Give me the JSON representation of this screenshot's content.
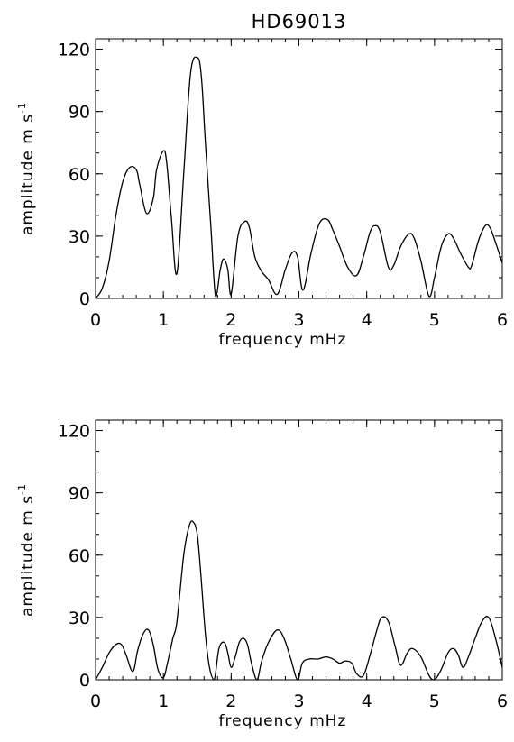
{
  "chart_data": [
    {
      "type": "line",
      "title": "HD69013",
      "xlabel": "frequency   mHz",
      "ylabel": "amplitude  m s",
      "ylabel_sup": "-1",
      "xlim": [
        0,
        6
      ],
      "ylim": [
        0,
        125
      ],
      "xticks": [
        "0",
        "1",
        "2",
        "3",
        "4",
        "5",
        "6"
      ],
      "yticks": [
        "0",
        "30",
        "60",
        "90",
        "120"
      ],
      "grid": false,
      "series": [
        {
          "x": [
            0.0,
            0.1,
            0.2,
            0.3,
            0.4,
            0.5,
            0.6,
            0.65,
            0.75,
            0.85,
            0.9,
            1.0,
            1.05,
            1.12,
            1.2,
            1.3,
            1.4,
            1.5,
            1.56,
            1.62,
            1.7,
            1.77,
            1.84,
            1.89,
            1.95,
            2.0,
            2.1,
            2.2,
            2.27,
            2.35,
            2.45,
            2.55,
            2.68,
            2.8,
            2.9,
            2.98,
            3.06,
            3.18,
            3.3,
            3.42,
            3.5,
            3.6,
            3.72,
            3.85,
            3.95,
            4.05,
            4.12,
            4.2,
            4.32,
            4.4,
            4.5,
            4.62,
            4.7,
            4.8,
            4.92,
            5.0,
            5.1,
            5.2,
            5.28,
            5.38,
            5.5,
            5.55,
            5.65,
            5.75,
            5.82,
            5.9,
            6.0
          ],
          "y": [
            0,
            5,
            18,
            40,
            56,
            63,
            62,
            55,
            41,
            48,
            62,
            71,
            65,
            38,
            12,
            60,
            108,
            116,
            107,
            75,
            35,
            1,
            14,
            19,
            14,
            2,
            30,
            37,
            34,
            20,
            13,
            9,
            2,
            14,
            22,
            20,
            4,
            22,
            36,
            38,
            33,
            25,
            15,
            11,
            20,
            32,
            35,
            32,
            15,
            16,
            25,
            31,
            29,
            18,
            1,
            10,
            25,
            31,
            29,
            22,
            15,
            16,
            28,
            35,
            34,
            27,
            17
          ]
        }
      ]
    },
    {
      "type": "line",
      "title": "",
      "xlabel": "frequency   mHz",
      "ylabel": "amplitude  m s",
      "ylabel_sup": "-1",
      "xlim": [
        0,
        6
      ],
      "ylim": [
        0,
        125
      ],
      "xticks": [
        "0",
        "1",
        "2",
        "3",
        "4",
        "5",
        "6"
      ],
      "yticks": [
        "0",
        "30",
        "60",
        "90",
        "120"
      ],
      "grid": false,
      "series": [
        {
          "x": [
            0.0,
            0.1,
            0.2,
            0.3,
            0.38,
            0.45,
            0.55,
            0.62,
            0.7,
            0.78,
            0.85,
            0.92,
            1.0,
            1.06,
            1.14,
            1.2,
            1.3,
            1.38,
            1.44,
            1.5,
            1.55,
            1.62,
            1.68,
            1.75,
            1.82,
            1.9,
            1.95,
            2.0,
            2.06,
            2.12,
            2.18,
            2.24,
            2.3,
            2.38,
            2.45,
            2.55,
            2.68,
            2.78,
            2.88,
            2.98,
            3.05,
            3.15,
            3.28,
            3.4,
            3.5,
            3.6,
            3.68,
            3.78,
            3.85,
            3.95,
            4.05,
            4.15,
            4.22,
            4.32,
            4.42,
            4.5,
            4.6,
            4.68,
            4.8,
            4.92,
            5.0,
            5.1,
            5.2,
            5.28,
            5.35,
            5.42,
            5.5,
            5.6,
            5.7,
            5.8,
            5.9,
            6.0
          ],
          "y": [
            0,
            6,
            13,
            17,
            17,
            12,
            4,
            14,
            22,
            24,
            17,
            5,
            1,
            8,
            20,
            28,
            60,
            74,
            76,
            70,
            52,
            22,
            6,
            0,
            15,
            18,
            13,
            6,
            11,
            18,
            20,
            17,
            8,
            0,
            9,
            18,
            24,
            20,
            10,
            0,
            8,
            10,
            10,
            11,
            10,
            8,
            9,
            8,
            3,
            2,
            12,
            24,
            30,
            28,
            16,
            7,
            13,
            15,
            11,
            2,
            0,
            5,
            13,
            15,
            12,
            6,
            11,
            20,
            28,
            30,
            20,
            6
          ]
        }
      ]
    }
  ]
}
